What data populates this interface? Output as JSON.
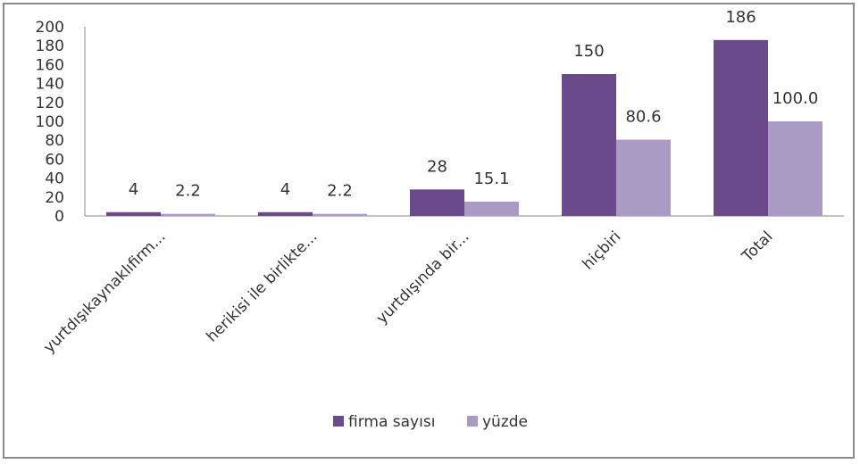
{
  "chart_data": {
    "type": "bar",
    "categories": [
      "yurtdışıkaynaklıfirm...",
      "herikisi ile birlikte...",
      "yurtdışında bir...",
      "hiçbiri",
      "Total"
    ],
    "series": [
      {
        "name": "firma sayısı",
        "values": [
          4,
          4,
          28,
          150,
          186
        ],
        "labels": [
          "4",
          "4",
          "28",
          "150",
          "186"
        ],
        "color": "#6b4a8c"
      },
      {
        "name": "yüzde",
        "values": [
          2.2,
          2.2,
          15.1,
          80.6,
          100.0
        ],
        "labels": [
          "2.2",
          "2.2",
          "15.1",
          "80.6",
          "100.0"
        ],
        "color": "#a99bc4"
      }
    ],
    "yticks": [
      "0",
      "20",
      "40",
      "60",
      "80",
      "100",
      "120",
      "140",
      "160",
      "180",
      "200"
    ],
    "ylim": [
      0,
      200
    ],
    "legend_position": "bottom",
    "grid": false
  }
}
